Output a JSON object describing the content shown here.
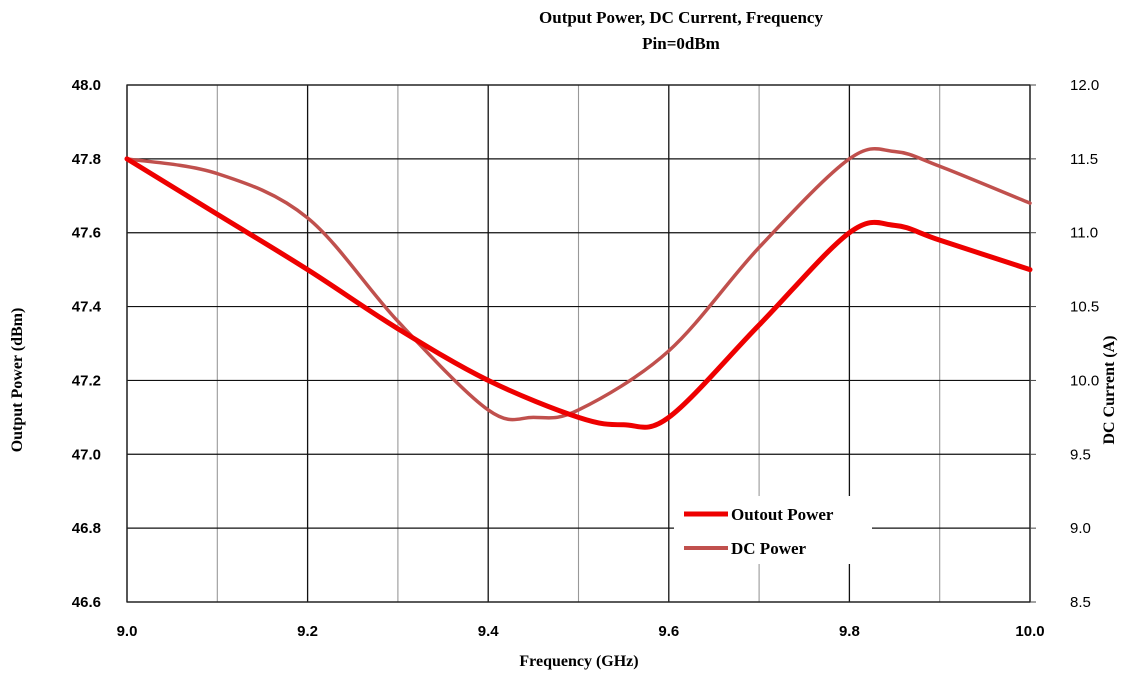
{
  "chart_data": {
    "type": "line",
    "title": "Output  Power,  DC  Current, Frequency",
    "subtitle": "Pin=0dBm",
    "xlabel": "Frequency  (GHz)",
    "ylabel_left": "Output  Power  (dBm)",
    "ylabel_right": "DC Current (A)",
    "xlim": [
      9.0,
      10.0
    ],
    "ylim_left": [
      46.6,
      48.0
    ],
    "ylim_right": [
      8.5,
      12.0
    ],
    "x_ticks": [
      "9.0",
      "9.2",
      "9.4",
      "9.6",
      "9.8",
      "10.0"
    ],
    "y_ticks_left": [
      "46.6",
      "46.8",
      "47.0",
      "47.2",
      "47.4",
      "47.6",
      "47.8",
      "48.0"
    ],
    "y_ticks_right": [
      "8.5",
      "9.0",
      "9.5",
      "10.0",
      "10.5",
      "11.0",
      "11.5",
      "12.0"
    ],
    "grid": true,
    "legend_position": "bottom-right",
    "series": [
      {
        "name": "Outout Power",
        "axis": "left",
        "color": "#ee0000",
        "x": [
          9.0,
          9.1,
          9.2,
          9.3,
          9.4,
          9.5,
          9.55,
          9.6,
          9.7,
          9.8,
          9.85,
          9.9,
          10.0
        ],
        "y": [
          47.8,
          47.65,
          47.5,
          47.34,
          47.2,
          47.1,
          47.08,
          47.1,
          47.35,
          47.6,
          47.62,
          47.58,
          47.5
        ]
      },
      {
        "name": "DC Power",
        "axis": "right",
        "color": "#c0504d",
        "x": [
          9.0,
          9.1,
          9.2,
          9.3,
          9.4,
          9.45,
          9.5,
          9.6,
          9.7,
          9.8,
          9.85,
          9.9,
          10.0
        ],
        "y": [
          11.5,
          11.4,
          11.1,
          10.4,
          9.8,
          9.75,
          9.8,
          10.2,
          10.9,
          11.5,
          11.55,
          11.45,
          11.2
        ]
      }
    ]
  }
}
